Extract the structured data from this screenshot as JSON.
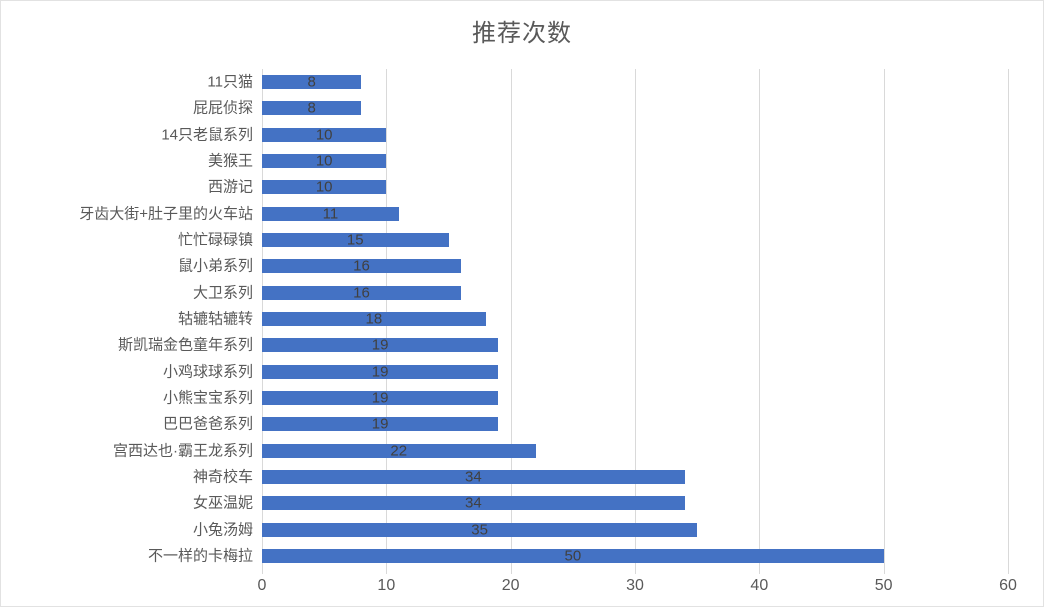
{
  "chart_data": {
    "type": "bar",
    "orientation": "horizontal",
    "title": "推荐次数",
    "categories": [
      "11只猫",
      "屁屁侦探",
      "14只老鼠系列",
      "美猴王",
      "西游记",
      "牙齿大街+肚子里的火车站",
      "忙忙碌碌镇",
      "鼠小弟系列",
      "大卫系列",
      "轱辘轱辘转",
      "斯凯瑞金色童年系列",
      "小鸡球球系列",
      "小熊宝宝系列",
      "巴巴爸爸系列",
      "宫西达也·霸王龙系列",
      "神奇校车",
      "女巫温妮",
      "小兔汤姆",
      "不一样的卡梅拉"
    ],
    "values": [
      8,
      8,
      10,
      10,
      10,
      11,
      15,
      16,
      16,
      18,
      19,
      19,
      19,
      19,
      22,
      34,
      34,
      35,
      50
    ],
    "x_ticks": [
      0,
      10,
      20,
      30,
      40,
      50,
      60
    ],
    "xlim": [
      0,
      60
    ],
    "grid": true,
    "legend": "none",
    "data_labels": "center",
    "colors": {
      "bar": "#4472C4",
      "data_label": "#404040",
      "axis_text": "#595959",
      "gridline": "#d9d9d9",
      "title_text": "#595959",
      "background": "#ffffff"
    }
  }
}
